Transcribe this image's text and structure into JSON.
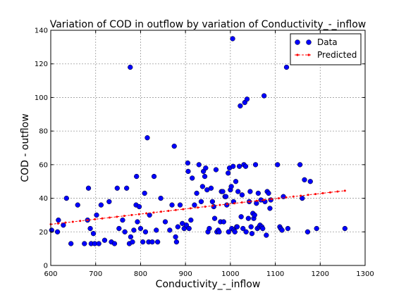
{
  "chart_data": {
    "type": "scatter",
    "title": "Variation of COD in outflow by variation of Conductivity_-_inflow",
    "xlabel": "Conductivity_-_inflow",
    "ylabel": "COD - outflow",
    "xlim": [
      600,
      1300
    ],
    "ylim": [
      0,
      140
    ],
    "xticks": [
      "600",
      "700",
      "800",
      "900",
      "1000",
      "1100",
      "1200",
      "1300"
    ],
    "yticks": [
      "0",
      "20",
      "40",
      "60",
      "80",
      "100",
      "120",
      "140"
    ],
    "grid": true,
    "legend_position": "top-right",
    "colors": {
      "data": "#0000ff",
      "predicted": "#ff0000"
    },
    "series": [
      {
        "name": "Data",
        "style": "markers",
        "points": [
          [
            602,
            21
          ],
          [
            615,
            20
          ],
          [
            617,
            27
          ],
          [
            628,
            24
          ],
          [
            635,
            40
          ],
          [
            645,
            13
          ],
          [
            660,
            36
          ],
          [
            675,
            13
          ],
          [
            682,
            27
          ],
          [
            684,
            46
          ],
          [
            688,
            22
          ],
          [
            690,
            13
          ],
          [
            695,
            19
          ],
          [
            698,
            13
          ],
          [
            702,
            30
          ],
          [
            707,
            13
          ],
          [
            712,
            36
          ],
          [
            720,
            15
          ],
          [
            730,
            38
          ],
          [
            735,
            14
          ],
          [
            742,
            13
          ],
          [
            748,
            46
          ],
          [
            752,
            22
          ],
          [
            760,
            27
          ],
          [
            765,
            20
          ],
          [
            769,
            46
          ],
          [
            775,
            13
          ],
          [
            777,
            118
          ],
          [
            778,
            17
          ],
          [
            782,
            14
          ],
          [
            785,
            21
          ],
          [
            790,
            36
          ],
          [
            791,
            53
          ],
          [
            793,
            26
          ],
          [
            797,
            35
          ],
          [
            800,
            22
          ],
          [
            805,
            14
          ],
          [
            809,
            43
          ],
          [
            811,
            20
          ],
          [
            815,
            76
          ],
          [
            818,
            14
          ],
          [
            820,
            30
          ],
          [
            826,
            14
          ],
          [
            830,
            53
          ],
          [
            835,
            21
          ],
          [
            838,
            14
          ],
          [
            845,
            40
          ],
          [
            855,
            26
          ],
          [
            865,
            21
          ],
          [
            870,
            36
          ],
          [
            875,
            71
          ],
          [
            878,
            17
          ],
          [
            880,
            14
          ],
          [
            883,
            23
          ],
          [
            888,
            36
          ],
          [
            893,
            25
          ],
          [
            897,
            22
          ],
          [
            902,
            24
          ],
          [
            905,
            61
          ],
          [
            906,
            56
          ],
          [
            908,
            22
          ],
          [
            912,
            27
          ],
          [
            915,
            52
          ],
          [
            920,
            36
          ],
          [
            925,
            43
          ],
          [
            930,
            60
          ],
          [
            935,
            38
          ],
          [
            938,
            47
          ],
          [
            940,
            56
          ],
          [
            943,
            53
          ],
          [
            945,
            58
          ],
          [
            948,
            45
          ],
          [
            950,
            20
          ],
          [
            953,
            22
          ],
          [
            957,
            46
          ],
          [
            960,
            38
          ],
          [
            963,
            35
          ],
          [
            965,
            28
          ],
          [
            968,
            57
          ],
          [
            970,
            20
          ],
          [
            973,
            21
          ],
          [
            975,
            20
          ],
          [
            978,
            26
          ],
          [
            980,
            44
          ],
          [
            983,
            44
          ],
          [
            985,
            26
          ],
          [
            988,
            41
          ],
          [
            990,
            41
          ],
          [
            992,
            36
          ],
          [
            995,
            55
          ],
          [
            996,
            20
          ],
          [
            998,
            58
          ],
          [
            1000,
            45
          ],
          [
            1002,
            47
          ],
          [
            1003,
            22
          ],
          [
            1005,
            135
          ],
          [
            1006,
            59
          ],
          [
            1007,
            38
          ],
          [
            1008,
            21
          ],
          [
            1010,
            20
          ],
          [
            1012,
            50
          ],
          [
            1014,
            23
          ],
          [
            1015,
            23
          ],
          [
            1017,
            44
          ],
          [
            1020,
            59
          ],
          [
            1022,
            95
          ],
          [
            1024,
            29
          ],
          [
            1026,
            42
          ],
          [
            1028,
            22
          ],
          [
            1030,
            60
          ],
          [
            1032,
            97
          ],
          [
            1034,
            59
          ],
          [
            1035,
            20
          ],
          [
            1037,
            99
          ],
          [
            1040,
            28
          ],
          [
            1042,
            38
          ],
          [
            1044,
            44
          ],
          [
            1046,
            23
          ],
          [
            1048,
            19
          ],
          [
            1050,
            31
          ],
          [
            1052,
            28
          ],
          [
            1054,
            30
          ],
          [
            1056,
            60
          ],
          [
            1058,
            37
          ],
          [
            1060,
            22
          ],
          [
            1062,
            43
          ],
          [
            1064,
            23
          ],
          [
            1066,
            24
          ],
          [
            1068,
            39
          ],
          [
            1070,
            23
          ],
          [
            1072,
            22
          ],
          [
            1075,
            101
          ],
          [
            1077,
            38
          ],
          [
            1080,
            18
          ],
          [
            1082,
            44
          ],
          [
            1085,
            43
          ],
          [
            1088,
            34
          ],
          [
            1090,
            39
          ],
          [
            1105,
            60
          ],
          [
            1110,
            23
          ],
          [
            1112,
            22
          ],
          [
            1115,
            21
          ],
          [
            1118,
            41
          ],
          [
            1125,
            118
          ],
          [
            1128,
            22
          ],
          [
            1155,
            60
          ],
          [
            1160,
            40
          ],
          [
            1165,
            51
          ],
          [
            1172,
            20
          ],
          [
            1178,
            50
          ],
          [
            1192,
            22
          ],
          [
            1255,
            22
          ]
        ]
      },
      {
        "name": "Predicted",
        "style": "dashed-line-markers",
        "x_range": [
          600,
          1255
        ],
        "y_range": [
          24.5,
          44.5
        ]
      }
    ]
  }
}
